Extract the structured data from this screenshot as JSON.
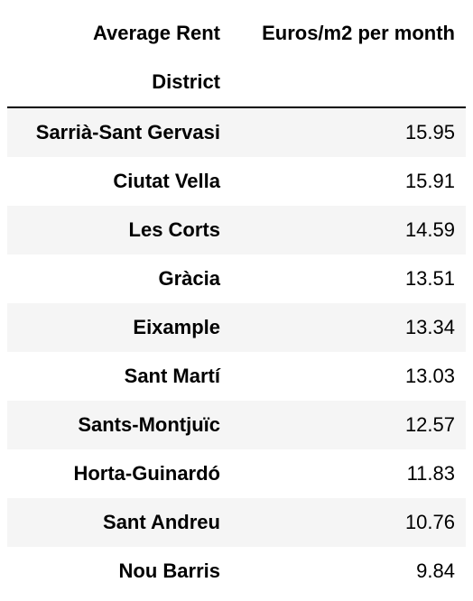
{
  "chart_data": {
    "type": "table",
    "columns_name": "Average Rent",
    "column": "Euros/m2 per month",
    "index_name": "District",
    "rows": [
      {
        "district": "Sarrià-Sant Gervasi",
        "value": "15.95"
      },
      {
        "district": "Ciutat Vella",
        "value": "15.91"
      },
      {
        "district": "Les Corts",
        "value": "14.59"
      },
      {
        "district": "Gràcia",
        "value": "13.51"
      },
      {
        "district": "Eixample",
        "value": "13.34"
      },
      {
        "district": "Sant Martí",
        "value": "13.03"
      },
      {
        "district": "Sants-Montjuïc",
        "value": "12.57"
      },
      {
        "district": "Horta-Guinardó",
        "value": "11.83"
      },
      {
        "district": "Sant Andreu",
        "value": "10.76"
      },
      {
        "district": "Nou Barris",
        "value": "9.84"
      }
    ]
  },
  "colors": {
    "stripe": "#f5f5f5",
    "rule": "#000000"
  }
}
